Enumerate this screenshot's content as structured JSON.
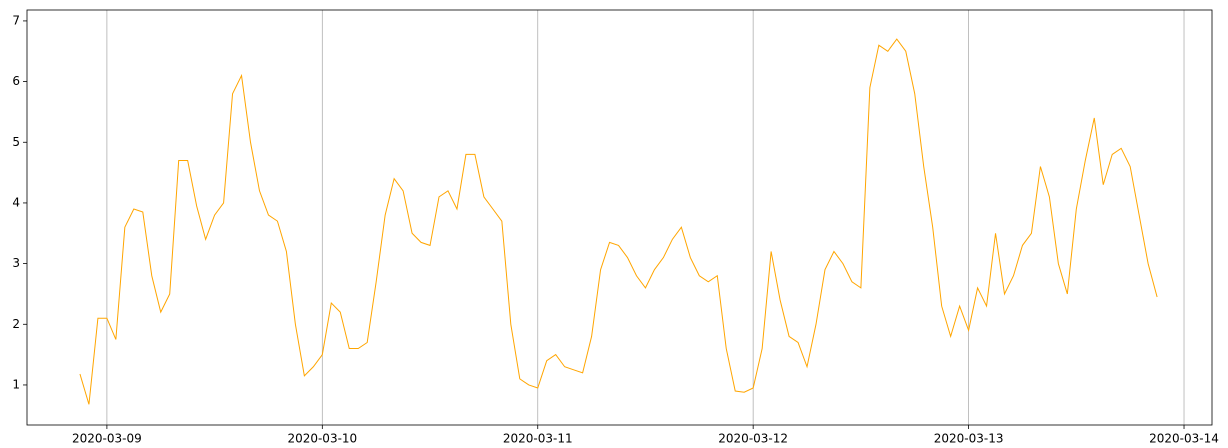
{
  "chart_data": {
    "type": "line",
    "x": [
      "2020-03-08T21:00",
      "2020-03-08T22:00",
      "2020-03-08T23:00",
      "2020-03-09T00:00",
      "2020-03-09T01:00",
      "2020-03-09T02:00",
      "2020-03-09T03:00",
      "2020-03-09T04:00",
      "2020-03-09T05:00",
      "2020-03-09T06:00",
      "2020-03-09T07:00",
      "2020-03-09T08:00",
      "2020-03-09T09:00",
      "2020-03-09T10:00",
      "2020-03-09T11:00",
      "2020-03-09T12:00",
      "2020-03-09T13:00",
      "2020-03-09T14:00",
      "2020-03-09T15:00",
      "2020-03-09T16:00",
      "2020-03-09T17:00",
      "2020-03-09T18:00",
      "2020-03-09T19:00",
      "2020-03-09T20:00",
      "2020-03-09T21:00",
      "2020-03-09T22:00",
      "2020-03-09T23:00",
      "2020-03-10T00:00",
      "2020-03-10T01:00",
      "2020-03-10T02:00",
      "2020-03-10T03:00",
      "2020-03-10T04:00",
      "2020-03-10T05:00",
      "2020-03-10T06:00",
      "2020-03-10T07:00",
      "2020-03-10T08:00",
      "2020-03-10T09:00",
      "2020-03-10T10:00",
      "2020-03-10T11:00",
      "2020-03-10T12:00",
      "2020-03-10T13:00",
      "2020-03-10T14:00",
      "2020-03-10T15:00",
      "2020-03-10T16:00",
      "2020-03-10T17:00",
      "2020-03-10T18:00",
      "2020-03-10T19:00",
      "2020-03-10T20:00",
      "2020-03-10T21:00",
      "2020-03-10T22:00",
      "2020-03-10T23:00",
      "2020-03-11T00:00",
      "2020-03-11T01:00",
      "2020-03-11T02:00",
      "2020-03-11T03:00",
      "2020-03-11T04:00",
      "2020-03-11T05:00",
      "2020-03-11T06:00",
      "2020-03-11T07:00",
      "2020-03-11T08:00",
      "2020-03-11T09:00",
      "2020-03-11T10:00",
      "2020-03-11T11:00",
      "2020-03-11T12:00",
      "2020-03-11T13:00",
      "2020-03-11T14:00",
      "2020-03-11T15:00",
      "2020-03-11T16:00",
      "2020-03-11T17:00",
      "2020-03-11T18:00",
      "2020-03-11T19:00",
      "2020-03-11T20:00",
      "2020-03-11T21:00",
      "2020-03-11T22:00",
      "2020-03-11T23:00",
      "2020-03-12T00:00",
      "2020-03-12T01:00",
      "2020-03-12T02:00",
      "2020-03-12T03:00",
      "2020-03-12T04:00",
      "2020-03-12T05:00",
      "2020-03-12T06:00",
      "2020-03-12T07:00",
      "2020-03-12T08:00",
      "2020-03-12T09:00",
      "2020-03-12T10:00",
      "2020-03-12T11:00",
      "2020-03-12T12:00",
      "2020-03-12T13:00",
      "2020-03-12T14:00",
      "2020-03-12T15:00",
      "2020-03-12T16:00",
      "2020-03-12T17:00",
      "2020-03-12T18:00",
      "2020-03-12T19:00",
      "2020-03-12T20:00",
      "2020-03-12T21:00",
      "2020-03-12T22:00",
      "2020-03-12T23:00",
      "2020-03-13T00:00",
      "2020-03-13T01:00",
      "2020-03-13T02:00",
      "2020-03-13T03:00",
      "2020-03-13T04:00",
      "2020-03-13T05:00",
      "2020-03-13T06:00",
      "2020-03-13T07:00",
      "2020-03-13T08:00",
      "2020-03-13T09:00",
      "2020-03-13T10:00",
      "2020-03-13T11:00",
      "2020-03-13T12:00",
      "2020-03-13T13:00",
      "2020-03-13T14:00",
      "2020-03-13T15:00",
      "2020-03-13T16:00",
      "2020-03-13T17:00",
      "2020-03-13T18:00",
      "2020-03-13T19:00",
      "2020-03-13T20:00",
      "2020-03-13T21:00"
    ],
    "values": [
      1.18,
      0.68,
      2.1,
      2.1,
      1.75,
      3.6,
      3.9,
      3.85,
      2.8,
      2.2,
      2.5,
      4.7,
      4.7,
      3.95,
      3.4,
      3.8,
      4.0,
      5.8,
      6.1,
      5.0,
      4.2,
      3.8,
      3.7,
      3.2,
      2.0,
      1.15,
      1.3,
      1.5,
      2.35,
      2.2,
      1.6,
      1.6,
      1.7,
      2.7,
      3.8,
      4.4,
      4.2,
      3.5,
      3.35,
      3.3,
      4.1,
      4.2,
      3.9,
      4.8,
      4.8,
      4.1,
      3.9,
      3.7,
      2.0,
      1.1,
      1.0,
      0.95,
      1.4,
      1.5,
      1.3,
      1.25,
      1.2,
      1.8,
      2.9,
      3.35,
      3.3,
      3.1,
      2.8,
      2.6,
      2.9,
      3.1,
      3.4,
      3.6,
      3.1,
      2.8,
      2.7,
      2.8,
      1.6,
      0.9,
      0.88,
      0.95,
      1.6,
      3.2,
      2.4,
      1.8,
      1.7,
      1.3,
      2.0,
      2.9,
      3.2,
      3.0,
      2.7,
      2.6,
      5.9,
      6.6,
      6.5,
      6.7,
      6.5,
      5.8,
      4.6,
      3.6,
      2.3,
      1.8,
      2.3,
      1.9,
      2.6,
      2.3,
      3.5,
      2.5,
      2.8,
      3.3,
      3.5,
      4.6,
      4.1,
      3.0,
      2.5,
      3.9,
      4.7,
      5.4,
      4.3,
      4.8,
      4.9,
      4.6,
      3.8,
      3.0,
      2.45
    ],
    "color": "#ffa500",
    "xlim": [
      "2020-03-08T15:06",
      "2020-03-14T03:07"
    ],
    "xticks": [
      "2020-03-09",
      "2020-03-10",
      "2020-03-11",
      "2020-03-12",
      "2020-03-13",
      "2020-03-14"
    ],
    "ylim": [
      0.34,
      7.18
    ],
    "yticks": [
      1,
      2,
      3,
      4,
      5,
      6,
      7
    ],
    "grid": "x"
  }
}
